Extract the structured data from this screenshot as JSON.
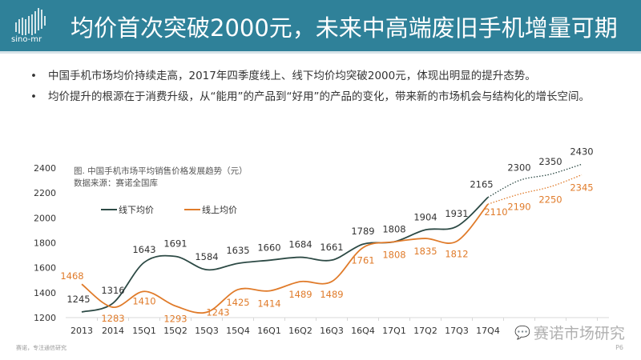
{
  "header": {
    "logo_text": "sino-mr",
    "title": "均价首次突破2000元，未来中高端废旧手机增量可期",
    "color": "#2f8199"
  },
  "bullets": [
    "中国手机市场均价持续走高，2017年四季度线上、线下均价均突破2000元，体现出明显的提升态势。",
    "均价提升的根源在于消费升级，从“能用”的产品到“好用”的产品的变化，带来新的市场机会与结构化的增长空间。"
  ],
  "chart_data": {
    "type": "line",
    "title": "图. 中国手机市场平均销售价格发展趋势（元）",
    "source": "数据来源：赛诺全国库",
    "categories": [
      "2013",
      "2014",
      "15Q1",
      "15Q2",
      "15Q3",
      "15Q4",
      "16Q1",
      "16Q2",
      "16Q3",
      "16Q4",
      "17Q1",
      "17Q2",
      "17Q3",
      "17Q4",
      "",
      "",
      ""
    ],
    "ylim": [
      1200,
      2400
    ],
    "yticks": [
      1200,
      1400,
      1600,
      1800,
      2000,
      2200,
      2400
    ],
    "grid": false,
    "legend_position": "top-left",
    "series": [
      {
        "name": "线下均价",
        "color": "#2d4a45",
        "values": [
          1245,
          1316,
          1643,
          1691,
          1584,
          1635,
          1660,
          1684,
          1661,
          1789,
          1808,
          1904,
          1931,
          2165,
          2300,
          2350,
          2430
        ]
      },
      {
        "name": "线上均价",
        "color": "#e07b2a",
        "values": [
          1468,
          1283,
          1410,
          1293,
          1243,
          1425,
          1414,
          1489,
          1489,
          1761,
          1808,
          1835,
          1812,
          2110,
          2190,
          2250,
          2345
        ]
      }
    ],
    "forecast_from_index": 13,
    "forecast_style": "dotted"
  },
  "watermark": "赛诺市场研究",
  "footer": {
    "left": "赛诺，专注通信研究",
    "page": "P6"
  }
}
